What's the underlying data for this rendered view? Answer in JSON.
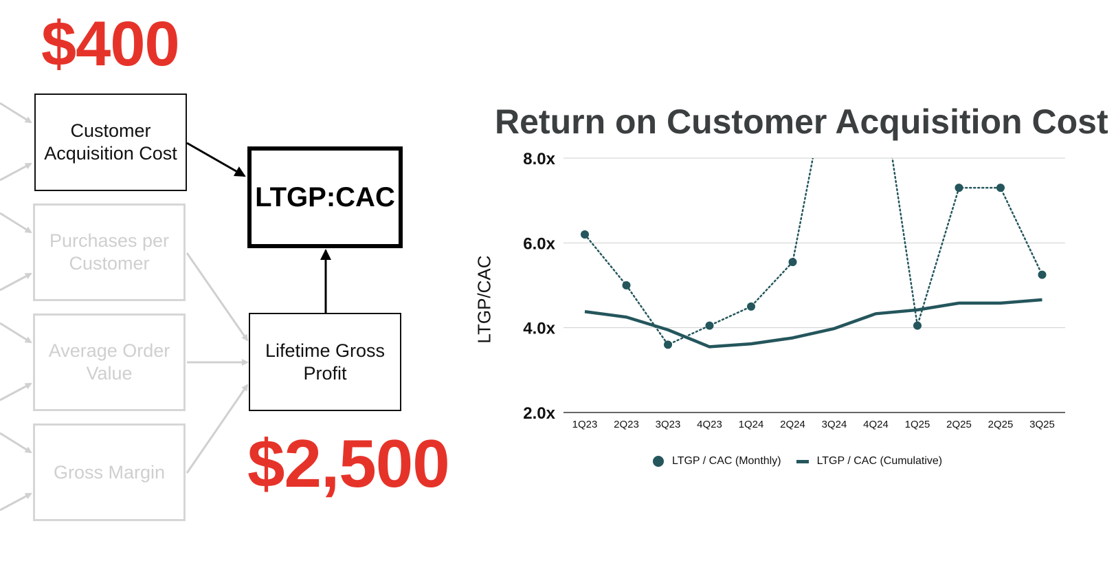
{
  "diagram": {
    "top_value": "$400",
    "bottom_value": "$2,500",
    "boxes": {
      "cac": "Customer Acquisition Cost",
      "ppc": "Purchases per Customer",
      "aov": "Average Order Value",
      "gm": "Gross Margin",
      "ltgp": "Lifetime Gross Profit",
      "ratio": "LTGP:CAC"
    },
    "colors": {
      "accent": "#e63329",
      "faded": "#d6d6d6",
      "series": "#24565c"
    }
  },
  "chart_data": {
    "type": "line",
    "title": "Return on Customer Acquisition Cost",
    "ylabel": "LTGP/CAC",
    "xlabel": "",
    "ylim": [
      2,
      8
    ],
    "yticks": [
      2,
      4,
      6,
      8
    ],
    "ytick_labels": [
      "2.0x",
      "4.0x",
      "6.0x",
      "8.0x"
    ],
    "categories": [
      "1Q23",
      "2Q23",
      "3Q23",
      "4Q23",
      "1Q24",
      "2Q24",
      "3Q24",
      "4Q24",
      "1Q25",
      "2Q25",
      "2Q25",
      "3Q25"
    ],
    "grid": true,
    "legend_position": "bottom",
    "series": [
      {
        "name": "LTGP / CAC (Monthly)",
        "style": "dotted-markers",
        "values": [
          6.2,
          5.0,
          3.6,
          4.05,
          4.5,
          5.55,
          null,
          null,
          4.05,
          7.3,
          7.3,
          5.25
        ]
      },
      {
        "name": "LTGP / CAC (Cumulative)",
        "style": "solid",
        "values": [
          4.38,
          4.25,
          3.95,
          3.55,
          3.62,
          3.76,
          3.98,
          4.33,
          4.42,
          4.58,
          4.58,
          4.66
        ]
      }
    ]
  }
}
